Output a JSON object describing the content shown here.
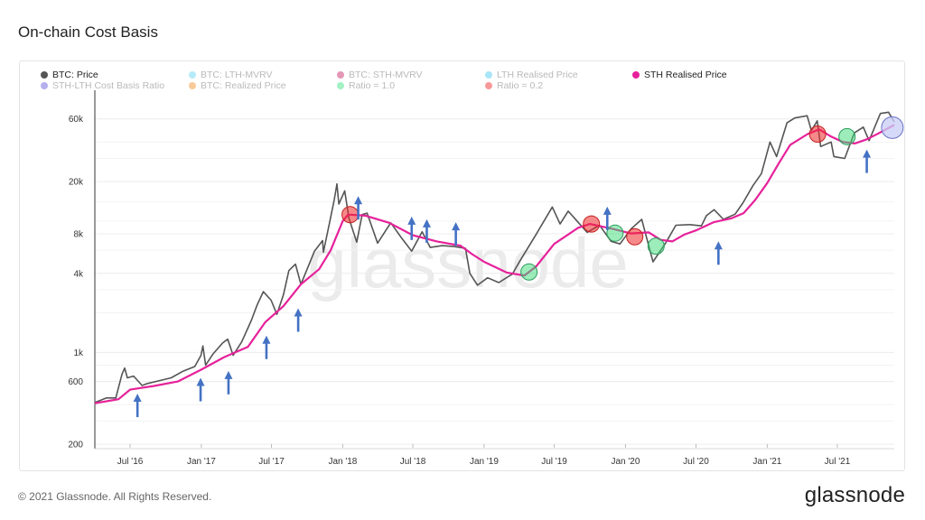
{
  "title": "On-chain Cost Basis",
  "footer": "© 2021 Glassnode. All Rights Reserved.",
  "brand": "glassnode",
  "watermark": "glassnode",
  "legend": [
    {
      "label": "BTC: Price",
      "color": "#555555",
      "active": true
    },
    {
      "label": "BTC: LTH-MVRV",
      "color": "#5ad3f0",
      "active": false
    },
    {
      "label": "BTC: STH-MVRV",
      "color": "#c2185b",
      "active": false
    },
    {
      "label": "LTH Realised Price",
      "color": "#41c5ee",
      "active": false
    },
    {
      "label": "STH Realised Price",
      "color": "#e6219a",
      "active": true
    },
    {
      "label": "STH-LTH Cost Basis Ratio",
      "color": "#5b4fd6",
      "active": false
    },
    {
      "label": "BTC: Realized Price",
      "color": "#f08a1c",
      "active": false
    },
    {
      "label": "Ratio = 1.0",
      "color": "#33e07a",
      "active": false
    },
    {
      "label": "Ratio = 0.2",
      "color": "#ee1c1c",
      "active": false
    }
  ],
  "chart_data": {
    "type": "line",
    "title": "On-chain Cost Basis",
    "y_scale": "log",
    "ylim": [
      200,
      70000
    ],
    "xlim": [
      "2016-04-01",
      "2021-11-25"
    ],
    "y_ticks": [
      {
        "v": 200,
        "label": "200"
      },
      {
        "v": 600,
        "label": "600"
      },
      {
        "v": 1000,
        "label": "1k"
      },
      {
        "v": 4000,
        "label": "4k"
      },
      {
        "v": 8000,
        "label": "8k"
      },
      {
        "v": 20000,
        "label": "20k"
      },
      {
        "v": 60000,
        "label": "60k"
      }
    ],
    "x_ticks": [
      {
        "d": "2016-07-01",
        "label": "Jul '16"
      },
      {
        "d": "2017-01-01",
        "label": "Jan '17"
      },
      {
        "d": "2017-07-01",
        "label": "Jul '17"
      },
      {
        "d": "2018-01-01",
        "label": "Jan '18"
      },
      {
        "d": "2018-07-01",
        "label": "Jul '18"
      },
      {
        "d": "2019-01-01",
        "label": "Jan '19"
      },
      {
        "d": "2019-07-01",
        "label": "Jul '19"
      },
      {
        "d": "2020-01-01",
        "label": "Jan '20"
      },
      {
        "d": "2020-07-01",
        "label": "Jul '20"
      },
      {
        "d": "2021-01-01",
        "label": "Jan '21"
      },
      {
        "d": "2021-07-01",
        "label": "Jul '21"
      }
    ],
    "grid": true,
    "series": [
      {
        "name": "BTC: Price",
        "color": "#555555",
        "points": [
          [
            "2016-04-01",
            415
          ],
          [
            "2016-05-01",
            450
          ],
          [
            "2016-05-25",
            450
          ],
          [
            "2016-06-10",
            680
          ],
          [
            "2016-06-17",
            760
          ],
          [
            "2016-06-24",
            640
          ],
          [
            "2016-07-10",
            660
          ],
          [
            "2016-08-01",
            560
          ],
          [
            "2016-08-15",
            580
          ],
          [
            "2016-09-15",
            610
          ],
          [
            "2016-10-15",
            640
          ],
          [
            "2016-11-15",
            720
          ],
          [
            "2016-12-15",
            780
          ],
          [
            "2016-12-31",
            950
          ],
          [
            "2017-01-05",
            1120
          ],
          [
            "2017-01-12",
            800
          ],
          [
            "2017-02-01",
            980
          ],
          [
            "2017-02-25",
            1180
          ],
          [
            "2017-03-10",
            1260
          ],
          [
            "2017-03-24",
            950
          ],
          [
            "2017-04-15",
            1200
          ],
          [
            "2017-05-10",
            1750
          ],
          [
            "2017-05-25",
            2300
          ],
          [
            "2017-06-10",
            2900
          ],
          [
            "2017-06-30",
            2500
          ],
          [
            "2017-07-15",
            1950
          ],
          [
            "2017-08-01",
            2750
          ],
          [
            "2017-08-15",
            4200
          ],
          [
            "2017-09-01",
            4700
          ],
          [
            "2017-09-15",
            3300
          ],
          [
            "2017-10-01",
            4300
          ],
          [
            "2017-10-20",
            5900
          ],
          [
            "2017-11-10",
            7100
          ],
          [
            "2017-11-12",
            5800
          ],
          [
            "2017-11-28",
            9700
          ],
          [
            "2017-12-10",
            14500
          ],
          [
            "2017-12-17",
            19200
          ],
          [
            "2017-12-22",
            13500
          ],
          [
            "2018-01-06",
            17000
          ],
          [
            "2018-01-17",
            10500
          ],
          [
            "2018-02-06",
            6900
          ],
          [
            "2018-02-20",
            11200
          ],
          [
            "2018-03-05",
            11500
          ],
          [
            "2018-04-01",
            6800
          ],
          [
            "2018-05-05",
            9700
          ],
          [
            "2018-06-01",
            7500
          ],
          [
            "2018-06-28",
            5900
          ],
          [
            "2018-07-25",
            8300
          ],
          [
            "2018-08-15",
            6300
          ],
          [
            "2018-09-15",
            6500
          ],
          [
            "2018-10-15",
            6400
          ],
          [
            "2018-11-14",
            6200
          ],
          [
            "2018-11-25",
            4000
          ],
          [
            "2018-12-15",
            3250
          ],
          [
            "2019-01-10",
            3700
          ],
          [
            "2019-02-08",
            3400
          ],
          [
            "2019-03-15",
            3950
          ],
          [
            "2019-04-03",
            4950
          ],
          [
            "2019-05-15",
            7900
          ],
          [
            "2019-06-26",
            12800
          ],
          [
            "2019-07-16",
            9500
          ],
          [
            "2019-08-06",
            11900
          ],
          [
            "2019-09-24",
            8200
          ],
          [
            "2019-10-26",
            9300
          ],
          [
            "2019-11-25",
            7000
          ],
          [
            "2019-12-18",
            6700
          ],
          [
            "2020-01-15",
            8700
          ],
          [
            "2020-02-12",
            10300
          ],
          [
            "2020-03-12",
            4900
          ],
          [
            "2020-04-15",
            6900
          ],
          [
            "2020-05-10",
            9300
          ],
          [
            "2020-06-15",
            9400
          ],
          [
            "2020-07-15",
            9200
          ],
          [
            "2020-07-28",
            11000
          ],
          [
            "2020-08-17",
            12200
          ],
          [
            "2020-09-10",
            10300
          ],
          [
            "2020-10-10",
            11300
          ],
          [
            "2020-10-30",
            13700
          ],
          [
            "2020-11-25",
            18600
          ],
          [
            "2020-12-17",
            23000
          ],
          [
            "2021-01-08",
            40000
          ],
          [
            "2021-01-25",
            31000
          ],
          [
            "2021-02-21",
            56000
          ],
          [
            "2021-03-13",
            61000
          ],
          [
            "2021-04-14",
            63500
          ],
          [
            "2021-04-25",
            49000
          ],
          [
            "2021-05-10",
            58000
          ],
          [
            "2021-05-19",
            37000
          ],
          [
            "2021-06-15",
            40000
          ],
          [
            "2021-06-22",
            31000
          ],
          [
            "2021-07-20",
            30000
          ],
          [
            "2021-08-14",
            47000
          ],
          [
            "2021-09-06",
            52000
          ],
          [
            "2021-09-21",
            41000
          ],
          [
            "2021-10-20",
            66000
          ],
          [
            "2021-11-10",
            67500
          ],
          [
            "2021-11-25",
            57000
          ]
        ]
      },
      {
        "name": "STH Realised Price",
        "color": "#e6219a",
        "points": [
          [
            "2016-04-01",
            410
          ],
          [
            "2016-06-01",
            440
          ],
          [
            "2016-07-01",
            520
          ],
          [
            "2016-09-01",
            555
          ],
          [
            "2016-11-01",
            600
          ],
          [
            "2017-01-01",
            740
          ],
          [
            "2017-03-01",
            920
          ],
          [
            "2017-05-01",
            1100
          ],
          [
            "2017-06-15",
            1700
          ],
          [
            "2017-08-01",
            2250
          ],
          [
            "2017-09-15",
            3300
          ],
          [
            "2017-11-01",
            4300
          ],
          [
            "2017-12-01",
            6000
          ],
          [
            "2018-01-01",
            10000
          ],
          [
            "2018-01-15",
            11200
          ],
          [
            "2018-03-01",
            11000
          ],
          [
            "2018-05-01",
            9700
          ],
          [
            "2018-07-01",
            7800
          ],
          [
            "2018-09-01",
            7000
          ],
          [
            "2018-11-01",
            6500
          ],
          [
            "2018-12-01",
            5600
          ],
          [
            "2019-01-01",
            4900
          ],
          [
            "2019-03-01",
            4050
          ],
          [
            "2019-04-15",
            3850
          ],
          [
            "2019-05-15",
            4500
          ],
          [
            "2019-07-01",
            6700
          ],
          [
            "2019-09-01",
            8900
          ],
          [
            "2019-10-01",
            9500
          ],
          [
            "2019-12-01",
            8700
          ],
          [
            "2020-01-15",
            8050
          ],
          [
            "2020-03-01",
            8200
          ],
          [
            "2020-04-01",
            7200
          ],
          [
            "2020-05-01",
            7000
          ],
          [
            "2020-06-01",
            7900
          ],
          [
            "2020-07-01",
            8500
          ],
          [
            "2020-08-15",
            9800
          ],
          [
            "2020-10-01",
            10500
          ],
          [
            "2020-11-01",
            11500
          ],
          [
            "2020-12-01",
            14500
          ],
          [
            "2021-01-01",
            19500
          ],
          [
            "2021-02-01",
            28000
          ],
          [
            "2021-03-01",
            38000
          ],
          [
            "2021-04-15",
            46000
          ],
          [
            "2021-05-15",
            50000
          ],
          [
            "2021-06-15",
            44000
          ],
          [
            "2021-07-15",
            40000
          ],
          [
            "2021-08-15",
            39000
          ],
          [
            "2021-09-15",
            42000
          ],
          [
            "2021-10-15",
            46500
          ],
          [
            "2021-11-25",
            54000
          ]
        ]
      }
    ],
    "markers": [
      {
        "date": "2018-01-20",
        "value": 11200,
        "type": "Ratio = 0.2"
      },
      {
        "date": "2019-04-27",
        "value": 4100,
        "type": "Ratio = 1.0"
      },
      {
        "date": "2019-10-05",
        "value": 9500,
        "type": "Ratio = 0.2"
      },
      {
        "date": "2019-12-05",
        "value": 8100,
        "type": "Ratio = 1.0"
      },
      {
        "date": "2020-01-25",
        "value": 7600,
        "type": "Ratio = 0.2"
      },
      {
        "date": "2020-03-20",
        "value": 6450,
        "type": "Ratio = 1.0"
      },
      {
        "date": "2021-05-11",
        "value": 46000,
        "type": "Ratio = 0.2"
      },
      {
        "date": "2021-07-26",
        "value": 44000,
        "type": "Ratio = 1.0"
      },
      {
        "date": "2021-11-20",
        "value": 51500,
        "type": "current"
      }
    ],
    "arrows": [
      {
        "date": "2016-07-20",
        "value": 470
      },
      {
        "date": "2016-12-30",
        "value": 620
      },
      {
        "date": "2017-03-12",
        "value": 700
      },
      {
        "date": "2017-06-18",
        "value": 1300
      },
      {
        "date": "2017-09-08",
        "value": 2100
      },
      {
        "date": "2018-02-10",
        "value": 15000
      },
      {
        "date": "2018-06-28",
        "value": 10500
      },
      {
        "date": "2018-08-06",
        "value": 10000
      },
      {
        "date": "2018-10-20",
        "value": 9500
      },
      {
        "date": "2019-11-15",
        "value": 12500
      },
      {
        "date": "2020-08-28",
        "value": 6800
      },
      {
        "date": "2021-09-15",
        "value": 34000
      }
    ]
  }
}
